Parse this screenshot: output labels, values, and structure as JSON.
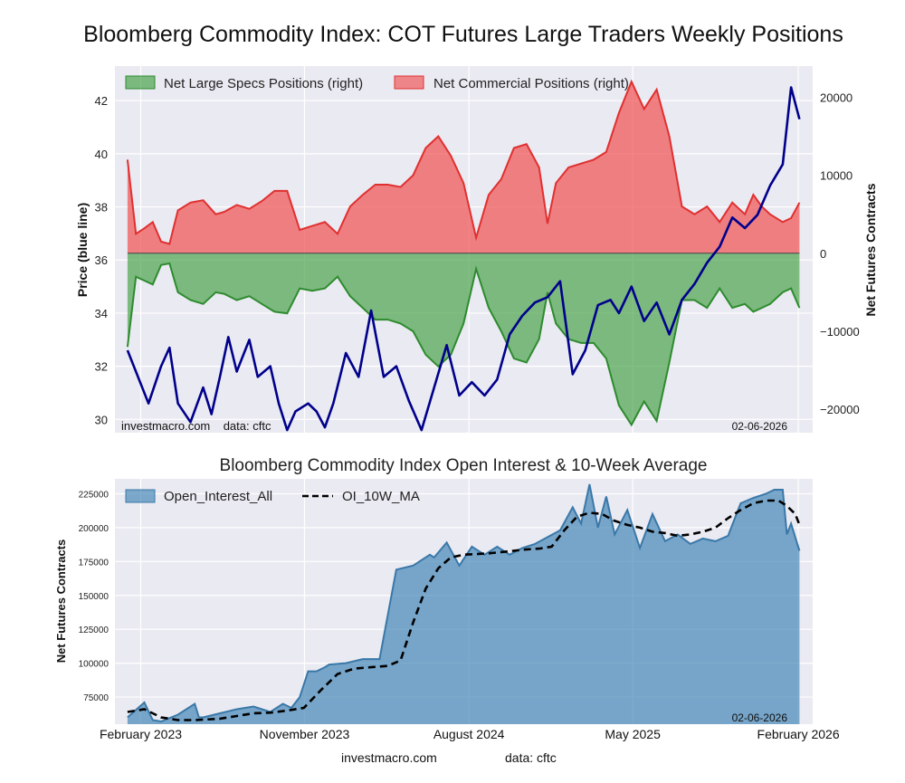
{
  "main_title": "Bloomberg Commodity Index: COT Futures Large Traders Weekly Positions",
  "colors": {
    "panel_bg": "#eaeaf2",
    "price_line": "#00008b",
    "specs_fill": "#3f9e3f",
    "specs_line": "#2e8b2e",
    "comm_fill": "#f05050",
    "comm_line": "#e03030",
    "oi_fill": "#4a8ab8",
    "oi_line": "#3a78a8",
    "ma_line": "#000000"
  },
  "chart_data": [
    {
      "type": "area",
      "title": "",
      "ylabel": "Price (blue line)",
      "y2label": "Net Futures Contracts",
      "ylim": [
        29.5,
        43.3
      ],
      "y2lim": [
        -23000,
        24000
      ],
      "yticks": [
        "30",
        "32",
        "34",
        "36",
        "38",
        "40",
        "42"
      ],
      "y2ticks": [
        "−20000",
        "−10000",
        "0",
        "10000",
        "20000"
      ],
      "legend_position": "top-left",
      "legend": [
        "Net Large Specs Positions (right)",
        "Net Commercial Positions (right)"
      ],
      "watermark_left": "investmacro.com    data: cftc",
      "watermark_right": "02-06-2026",
      "grid": true,
      "x_range": [
        "2022-12-20",
        "2026-02-25"
      ],
      "series": [
        {
          "name": "Net Large Specs Positions (right)",
          "kind": "area",
          "dates": [
            "2023-01-10",
            "2023-01-24",
            "2023-02-07",
            "2023-02-21",
            "2023-03-07",
            "2023-03-21",
            "2023-04-04",
            "2023-04-25",
            "2023-05-16",
            "2023-06-06",
            "2023-06-20",
            "2023-07-11",
            "2023-08-01",
            "2023-08-22",
            "2023-09-12",
            "2023-10-03",
            "2023-10-24",
            "2023-11-14",
            "2023-12-05",
            "2023-12-26",
            "2024-01-16",
            "2024-02-06",
            "2024-02-27",
            "2024-03-19",
            "2024-04-09",
            "2024-04-30",
            "2024-05-21",
            "2024-06-11",
            "2024-07-02",
            "2024-07-23",
            "2024-08-13",
            "2024-09-03",
            "2024-09-24",
            "2024-10-15",
            "2024-11-05",
            "2024-11-26",
            "2024-12-10",
            "2024-12-24",
            "2025-01-14",
            "2025-02-04",
            "2025-02-25",
            "2025-03-18",
            "2025-04-08",
            "2025-04-29",
            "2025-05-20",
            "2025-06-10",
            "2025-07-01",
            "2025-07-22",
            "2025-08-12",
            "2025-09-02",
            "2025-09-23",
            "2025-10-14",
            "2025-11-04",
            "2025-11-18",
            "2025-12-02",
            "2025-12-16",
            "2026-01-06",
            "2026-01-20",
            "2026-02-03"
          ],
          "values": [
            -12000,
            -3000,
            -3500,
            -4000,
            -1500,
            -1300,
            -5000,
            -6000,
            -6500,
            -5000,
            -5200,
            -6000,
            -5500,
            -6500,
            -7500,
            -7700,
            -4500,
            -4800,
            -4500,
            -3000,
            -5500,
            -7000,
            -8500,
            -8500,
            -9000,
            -10000,
            -13000,
            -14500,
            -13000,
            -9000,
            -2000,
            -7000,
            -10000,
            -13500,
            -14000,
            -11000,
            -5000,
            -9000,
            -11000,
            -11500,
            -11500,
            -13500,
            -19500,
            -22000,
            -19000,
            -21500,
            -14000,
            -6000,
            -6000,
            -7000,
            -4500,
            -7000,
            -6500,
            -7500,
            -7000,
            -6500,
            -5000,
            -4500,
            -7000
          ]
        },
        {
          "name": "Net Commercial Positions (right)",
          "kind": "area",
          "dates": [
            "2023-01-10",
            "2023-01-24",
            "2023-02-07",
            "2023-02-21",
            "2023-03-07",
            "2023-03-21",
            "2023-04-04",
            "2023-04-25",
            "2023-05-16",
            "2023-06-06",
            "2023-06-20",
            "2023-07-11",
            "2023-08-01",
            "2023-08-22",
            "2023-09-12",
            "2023-10-03",
            "2023-10-24",
            "2023-11-14",
            "2023-12-05",
            "2023-12-26",
            "2024-01-16",
            "2024-02-06",
            "2024-02-27",
            "2024-03-19",
            "2024-04-09",
            "2024-04-30",
            "2024-05-21",
            "2024-06-11",
            "2024-07-02",
            "2024-07-23",
            "2024-08-13",
            "2024-09-03",
            "2024-09-24",
            "2024-10-15",
            "2024-11-05",
            "2024-11-26",
            "2024-12-10",
            "2024-12-24",
            "2025-01-14",
            "2025-02-04",
            "2025-02-25",
            "2025-03-18",
            "2025-04-08",
            "2025-04-29",
            "2025-05-20",
            "2025-06-10",
            "2025-07-01",
            "2025-07-22",
            "2025-08-12",
            "2025-09-02",
            "2025-09-23",
            "2025-10-14",
            "2025-11-04",
            "2025-11-18",
            "2025-12-02",
            "2025-12-16",
            "2026-01-06",
            "2026-01-20",
            "2026-02-03"
          ],
          "values": [
            12000,
            2500,
            3200,
            4000,
            1500,
            1200,
            5500,
            6500,
            6800,
            5000,
            5300,
            6200,
            5700,
            6700,
            8000,
            8000,
            3000,
            3500,
            4000,
            2500,
            6000,
            7500,
            8800,
            8800,
            8500,
            10000,
            13500,
            15000,
            12500,
            9000,
            2000,
            7500,
            9500,
            13500,
            14000,
            11000,
            3800,
            9000,
            11000,
            11500,
            12000,
            13000,
            18000,
            22000,
            18500,
            21000,
            15000,
            6000,
            5000,
            6000,
            4000,
            6500,
            5000,
            7500,
            6000,
            5000,
            4000,
            4500,
            6500
          ]
        },
        {
          "name": "Price (blue line)",
          "kind": "line",
          "axis": "left",
          "dates": [
            "2023-01-10",
            "2023-01-24",
            "2023-02-14",
            "2023-03-07",
            "2023-03-21",
            "2023-04-04",
            "2023-04-25",
            "2023-05-16",
            "2023-05-30",
            "2023-06-13",
            "2023-06-27",
            "2023-07-11",
            "2023-08-01",
            "2023-08-15",
            "2023-09-05",
            "2023-09-19",
            "2023-10-03",
            "2023-10-17",
            "2023-11-07",
            "2023-11-21",
            "2023-12-05",
            "2023-12-19",
            "2024-01-09",
            "2024-01-30",
            "2024-02-20",
            "2024-03-12",
            "2024-04-02",
            "2024-04-23",
            "2024-05-14",
            "2024-06-04",
            "2024-06-25",
            "2024-07-16",
            "2024-08-06",
            "2024-08-27",
            "2024-09-17",
            "2024-10-08",
            "2024-10-29",
            "2024-11-19",
            "2024-12-10",
            "2024-12-31",
            "2025-01-21",
            "2025-02-11",
            "2025-03-04",
            "2025-03-25",
            "2025-04-08",
            "2025-04-29",
            "2025-05-20",
            "2025-06-10",
            "2025-07-01",
            "2025-07-22",
            "2025-08-12",
            "2025-09-02",
            "2025-09-23",
            "2025-10-14",
            "2025-11-04",
            "2025-11-25",
            "2025-12-16",
            "2026-01-06",
            "2026-01-20",
            "2026-02-03"
          ],
          "values": [
            32.6,
            31.8,
            30.6,
            32.0,
            32.7,
            30.6,
            29.9,
            31.2,
            30.2,
            31.6,
            33.1,
            31.8,
            33.0,
            31.6,
            32.0,
            30.6,
            29.6,
            30.3,
            30.6,
            30.3,
            29.7,
            30.6,
            32.5,
            31.6,
            34.1,
            31.6,
            32.0,
            30.7,
            29.6,
            31.2,
            32.8,
            30.9,
            31.4,
            30.9,
            31.5,
            33.2,
            33.9,
            34.4,
            34.6,
            35.2,
            31.7,
            32.6,
            34.3,
            34.5,
            34.0,
            35.0,
            33.7,
            34.4,
            33.2,
            34.5,
            35.1,
            35.9,
            36.5,
            37.6,
            37.2,
            37.7,
            38.8,
            39.6,
            42.5,
            41.3
          ]
        }
      ]
    },
    {
      "type": "area",
      "title": "Bloomberg Commodity Index Open Interest & 10-Week Average",
      "ylabel": "Net Futures Contracts",
      "xlabel": "",
      "ylim": [
        55000,
        236000
      ],
      "yticks": [
        "75000",
        "100000",
        "125000",
        "150000",
        "175000",
        "200000",
        "225000"
      ],
      "xticks": [
        "February 2023",
        "November 2023",
        "August 2024",
        "May 2025",
        "February 2026"
      ],
      "legend_position": "top-left",
      "legend": [
        "Open_Interest_All",
        "OI_10W_MA"
      ],
      "watermark_right": "02-06-2026",
      "grid": true,
      "x_range": [
        "2022-12-20",
        "2026-02-25"
      ],
      "series": [
        {
          "name": "Open_Interest_All",
          "kind": "area",
          "dates": [
            "2023-01-10",
            "2023-02-07",
            "2023-02-21",
            "2023-03-07",
            "2023-04-04",
            "2023-05-02",
            "2023-05-09",
            "2023-05-16",
            "2023-06-13",
            "2023-07-11",
            "2023-08-08",
            "2023-09-05",
            "2023-09-26",
            "2023-10-10",
            "2023-10-24",
            "2023-11-07",
            "2023-11-21",
            "2023-12-05",
            "2023-12-12",
            "2024-01-09",
            "2024-02-06",
            "2024-03-05",
            "2024-04-02",
            "2024-04-30",
            "2024-05-28",
            "2024-06-04",
            "2024-06-25",
            "2024-07-16",
            "2024-08-06",
            "2024-08-27",
            "2024-09-17",
            "2024-10-08",
            "2024-10-29",
            "2024-11-19",
            "2024-12-10",
            "2024-12-31",
            "2025-01-21",
            "2025-02-04",
            "2025-02-18",
            "2025-03-04",
            "2025-03-18",
            "2025-04-01",
            "2025-04-22",
            "2025-05-13",
            "2025-06-03",
            "2025-06-24",
            "2025-07-15",
            "2025-08-05",
            "2025-08-26",
            "2025-09-16",
            "2025-10-07",
            "2025-10-28",
            "2025-11-18",
            "2025-12-09",
            "2025-12-23",
            "2026-01-06",
            "2026-01-13",
            "2026-01-20",
            "2026-02-03"
          ],
          "values": [
            60000,
            71000,
            58000,
            57000,
            62000,
            70000,
            60000,
            60000,
            63000,
            66000,
            68000,
            64000,
            70000,
            67000,
            75000,
            94000,
            94000,
            97000,
            99000,
            100000,
            103000,
            103000,
            169000,
            172000,
            180000,
            178000,
            189000,
            172000,
            186000,
            180000,
            186000,
            180000,
            185000,
            188000,
            193000,
            198000,
            215000,
            203000,
            232000,
            200000,
            223000,
            195000,
            213000,
            185000,
            210000,
            190000,
            195000,
            188000,
            192000,
            190000,
            194000,
            218000,
            222000,
            225000,
            228000,
            228000,
            195000,
            203000,
            183000
          ]
        },
        {
          "name": "OI_10W_MA",
          "kind": "line",
          "dates": [
            "2023-01-10",
            "2023-02-07",
            "2023-03-07",
            "2023-04-04",
            "2023-05-02",
            "2023-06-13",
            "2023-07-11",
            "2023-08-08",
            "2023-09-05",
            "2023-10-03",
            "2023-10-31",
            "2023-11-28",
            "2023-12-26",
            "2024-01-23",
            "2024-02-20",
            "2024-03-19",
            "2024-04-09",
            "2024-04-30",
            "2024-05-21",
            "2024-06-11",
            "2024-07-02",
            "2024-07-23",
            "2024-08-13",
            "2024-09-03",
            "2024-09-24",
            "2024-10-15",
            "2024-11-05",
            "2024-11-26",
            "2024-12-17",
            "2025-01-07",
            "2025-01-28",
            "2025-02-18",
            "2025-03-11",
            "2025-04-01",
            "2025-04-22",
            "2025-05-13",
            "2025-06-03",
            "2025-06-24",
            "2025-07-15",
            "2025-08-05",
            "2025-08-26",
            "2025-09-16",
            "2025-10-07",
            "2025-10-28",
            "2025-11-18",
            "2025-12-09",
            "2025-12-30",
            "2026-01-13",
            "2026-01-27",
            "2026-02-03"
          ],
          "values": [
            64000,
            66000,
            60000,
            58000,
            58000,
            59000,
            61000,
            63000,
            63500,
            65000,
            67000,
            80000,
            92000,
            96000,
            97000,
            98000,
            102000,
            130000,
            155000,
            170000,
            178000,
            180000,
            180500,
            181000,
            182000,
            183000,
            184000,
            184500,
            186000,
            198000,
            208000,
            211000,
            210000,
            205000,
            202000,
            200000,
            197000,
            196000,
            194000,
            195000,
            197000,
            200000,
            207000,
            213000,
            218000,
            220000,
            220000,
            216000,
            210000,
            202000
          ]
        }
      ]
    }
  ],
  "footer": {
    "left": "investmacro.com",
    "right": "data: cftc"
  }
}
